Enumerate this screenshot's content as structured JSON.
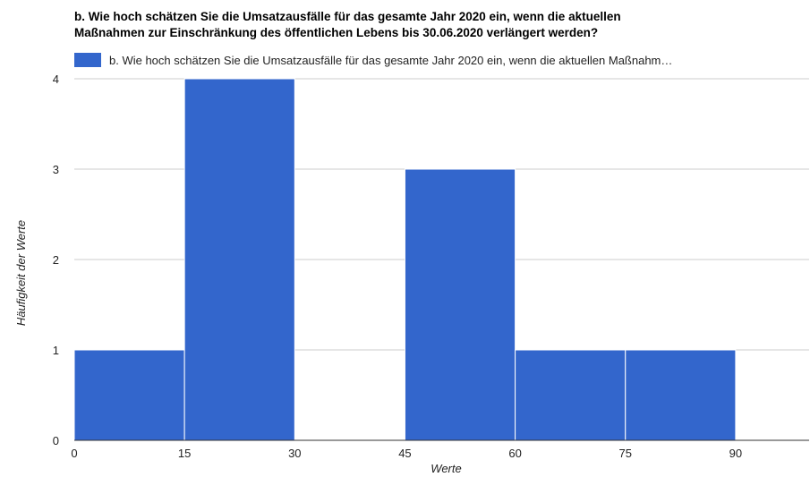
{
  "chart_data": {
    "type": "bar",
    "histogram": true,
    "title_line1": "b. Wie hoch schätzen Sie die Umsatzausfälle für das gesamte Jahr 2020 ein, wenn die aktuellen",
    "title_line2": "Maßnahmen zur Einschränkung des öffentlichen Lebens bis 30.06.2020 verlängert werden?",
    "legend_label": "b. Wie hoch schätzen Sie die Umsatzausfälle für das gesamte Jahr 2020 ein, wenn die aktuellen Maßnahm…",
    "xlabel": "Werte",
    "ylabel": "Häufigkeit der Werte",
    "bins": [
      {
        "from": 0,
        "to": 15,
        "value": 1
      },
      {
        "from": 15,
        "to": 30,
        "value": 4
      },
      {
        "from": 30,
        "to": 45,
        "value": 0
      },
      {
        "from": 45,
        "to": 60,
        "value": 3
      },
      {
        "from": 60,
        "to": 75,
        "value": 1
      },
      {
        "from": 75,
        "to": 90,
        "value": 1
      }
    ],
    "xlim": [
      0,
      100
    ],
    "ylim": [
      0,
      4
    ],
    "x_ticks": [
      "0",
      "15",
      "30",
      "45",
      "60",
      "75",
      "90"
    ],
    "y_ticks": [
      "0",
      "1",
      "2",
      "3",
      "4"
    ],
    "legend_position": "top",
    "grid": true,
    "color": "#3366cc"
  }
}
